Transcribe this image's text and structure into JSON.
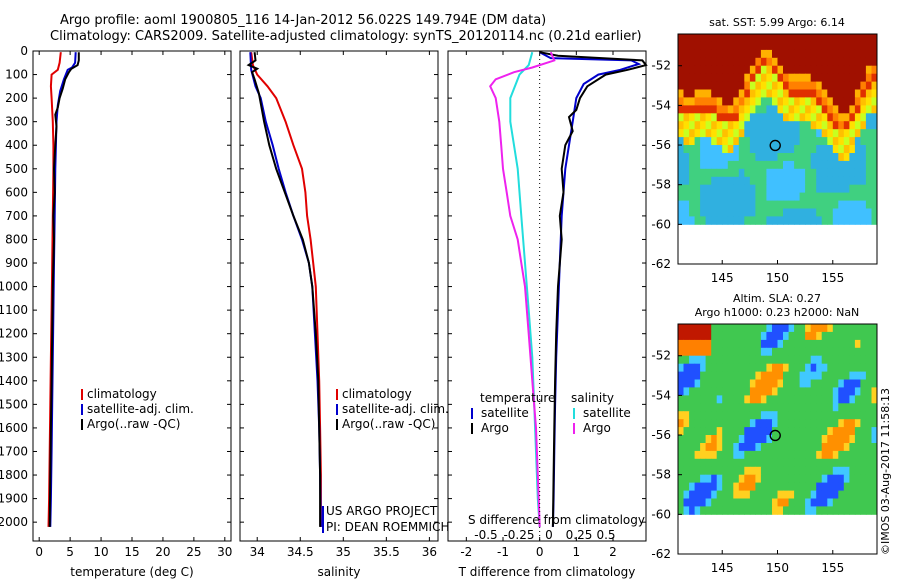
{
  "title_line1": "Argo profile: aoml 1900805_116 14-Jan-2012 56.022S 149.794E (DM data)",
  "title_line2": "Climatology: CARS2009. Satellite-adjusted climatology: synTS_20120114.nc (0.21d earlier)",
  "credit": "©IMOS 03-Aug-2017 11:58:13",
  "project_line1": "US ARGO PROJECT",
  "project_line2": "PI: DEAN ROEMMICH",
  "colors": {
    "climatology": "#e00000",
    "satellite": "#0000cc",
    "argo": "#000000",
    "s_sat": "#22dddd",
    "s_argo": "#ee22ee"
  },
  "chart_data": [
    {
      "type": "line",
      "panel": "temperature",
      "xlabel": "temperature (deg C)",
      "ylabel": "",
      "xlim": [
        -1,
        31
      ],
      "ylim": [
        2080,
        0
      ],
      "xticks": [
        0,
        5,
        10,
        15,
        20,
        25,
        30
      ],
      "yticks": [
        0,
        100,
        200,
        300,
        400,
        500,
        600,
        700,
        800,
        900,
        1000,
        1100,
        1200,
        1300,
        1400,
        1500,
        1600,
        1700,
        1800,
        1900,
        2000
      ],
      "legend": [
        "climatology",
        "satellite-adj. clim.",
        "Argo(..raw -QC)"
      ],
      "series": [
        {
          "name": "climatology",
          "color": "#e00000",
          "points": [
            [
              3.5,
              5
            ],
            [
              3.3,
              50
            ],
            [
              3.0,
              80
            ],
            [
              2.0,
              100
            ],
            [
              1.9,
              150
            ],
            [
              2.0,
              200
            ],
            [
              2.2,
              300
            ],
            [
              2.3,
              400
            ],
            [
              2.3,
              500
            ],
            [
              2.2,
              700
            ],
            [
              2.1,
              900
            ],
            [
              2.0,
              1100
            ],
            [
              1.9,
              1300
            ],
            [
              1.8,
              1500
            ],
            [
              1.7,
              1700
            ],
            [
              1.6,
              1900
            ],
            [
              1.5,
              2020
            ]
          ]
        },
        {
          "name": "satellite-adj. clim.",
          "color": "#0000cc",
          "points": [
            [
              5.9,
              5
            ],
            [
              5.8,
              50
            ],
            [
              5.3,
              70
            ],
            [
              4.6,
              80
            ],
            [
              4.0,
              120
            ],
            [
              3.4,
              170
            ],
            [
              3.0,
              230
            ],
            [
              2.8,
              300
            ],
            [
              2.7,
              400
            ],
            [
              2.6,
              500
            ],
            [
              2.5,
              700
            ],
            [
              2.4,
              900
            ],
            [
              2.3,
              1100
            ],
            [
              2.2,
              1300
            ],
            [
              2.1,
              1500
            ],
            [
              2.0,
              1700
            ],
            [
              1.9,
              1900
            ],
            [
              1.8,
              2020
            ]
          ]
        },
        {
          "name": "Argo(..raw -QC)",
          "color": "#000000",
          "points": [
            [
              6.4,
              5
            ],
            [
              6.4,
              40
            ],
            [
              6.2,
              60
            ],
            [
              5.2,
              75
            ],
            [
              4.8,
              90
            ],
            [
              4.2,
              120
            ],
            [
              3.8,
              160
            ],
            [
              3.3,
              200
            ],
            [
              3.0,
              240
            ],
            [
              2.6,
              270
            ],
            [
              2.8,
              320
            ],
            [
              2.6,
              400
            ],
            [
              2.4,
              500
            ],
            [
              2.5,
              600
            ],
            [
              2.3,
              700
            ],
            [
              2.4,
              800
            ],
            [
              2.2,
              1000
            ],
            [
              2.1,
              1200
            ],
            [
              2.0,
              1400
            ],
            [
              1.9,
              1600
            ],
            [
              1.8,
              1800
            ],
            [
              1.7,
              2020
            ]
          ]
        }
      ]
    },
    {
      "type": "line",
      "panel": "salinity",
      "xlabel": "salinity",
      "ylabel": "",
      "xlim": [
        33.8,
        36.1
      ],
      "ylim": [
        2080,
        0
      ],
      "xticks": [
        34,
        34.5,
        35,
        35.5,
        36
      ],
      "legend": [
        "climatology",
        "satellite-adj. clim.",
        "Argo(..raw -QC)"
      ],
      "series": [
        {
          "name": "climatology",
          "color": "#e00000",
          "points": [
            [
              33.93,
              5
            ],
            [
              33.95,
              60
            ],
            [
              34.0,
              100
            ],
            [
              34.12,
              150
            ],
            [
              34.22,
              200
            ],
            [
              34.33,
              300
            ],
            [
              34.42,
              400
            ],
            [
              34.52,
              500
            ],
            [
              34.56,
              600
            ],
            [
              34.58,
              700
            ],
            [
              34.62,
              800
            ],
            [
              34.65,
              900
            ],
            [
              34.68,
              1000
            ],
            [
              34.7,
              1200
            ],
            [
              34.72,
              1400
            ],
            [
              34.73,
              1600
            ],
            [
              34.74,
              1800
            ],
            [
              34.74,
              2020
            ]
          ]
        },
        {
          "name": "satellite-adj. clim.",
          "color": "#0000cc",
          "points": [
            [
              33.92,
              5
            ],
            [
              33.93,
              80
            ],
            [
              33.98,
              150
            ],
            [
              34.04,
              200
            ],
            [
              34.1,
              300
            ],
            [
              34.18,
              400
            ],
            [
              34.25,
              500
            ],
            [
              34.33,
              600
            ],
            [
              34.42,
              700
            ],
            [
              34.52,
              800
            ],
            [
              34.6,
              900
            ],
            [
              34.64,
              1000
            ],
            [
              34.67,
              1200
            ],
            [
              34.7,
              1400
            ],
            [
              34.72,
              1600
            ],
            [
              34.73,
              1800
            ],
            [
              34.74,
              2020
            ]
          ]
        },
        {
          "name": "Argo(..raw -QC)",
          "color": "#000000",
          "points": [
            [
              33.97,
              5
            ],
            [
              33.98,
              40
            ],
            [
              33.9,
              60
            ],
            [
              34.0,
              75
            ],
            [
              33.94,
              90
            ],
            [
              33.97,
              120
            ],
            [
              34.02,
              180
            ],
            [
              34.05,
              240
            ],
            [
              34.08,
              300
            ],
            [
              34.14,
              400
            ],
            [
              34.22,
              500
            ],
            [
              34.32,
              600
            ],
            [
              34.42,
              700
            ],
            [
              34.53,
              800
            ],
            [
              34.6,
              900
            ],
            [
              34.64,
              1000
            ],
            [
              34.68,
              1200
            ],
            [
              34.71,
              1400
            ],
            [
              34.72,
              1600
            ],
            [
              34.73,
              1800
            ],
            [
              34.73,
              2020
            ]
          ]
        }
      ]
    },
    {
      "type": "line",
      "panel": "difference",
      "xlabel": "T difference from climatology",
      "xlabel2": "S difference from climatology",
      "xlim": [
        -2.5,
        2.9
      ],
      "ylim": [
        2080,
        0
      ],
      "xticks": [
        -2,
        -1,
        0,
        1,
        2
      ],
      "xticks2": [
        -0.5,
        -0.25,
        0,
        0.25,
        0.5
      ],
      "legend_left_title": "temperature",
      "legend_right_title": "salinity",
      "legend": [
        "satellite",
        "Argo",
        "satellite",
        "Argo"
      ],
      "series": [
        {
          "name": "satellite",
          "color": "#0000cc",
          "points": [
            [
              0.0,
              5
            ],
            [
              0.3,
              30
            ],
            [
              2.5,
              40
            ],
            [
              2.7,
              55
            ],
            [
              2.2,
              80
            ],
            [
              1.6,
              100
            ],
            [
              1.2,
              140
            ],
            [
              1.0,
              200
            ],
            [
              0.9,
              300
            ],
            [
              0.8,
              400
            ],
            [
              0.7,
              500
            ],
            [
              0.6,
              700
            ],
            [
              0.55,
              900
            ],
            [
              0.5,
              1100
            ],
            [
              0.45,
              1300
            ],
            [
              0.42,
              1500
            ],
            [
              0.4,
              1700
            ],
            [
              0.38,
              1900
            ],
            [
              0.36,
              2020
            ]
          ]
        },
        {
          "name": "Argo",
          "color": "#000000",
          "points": [
            [
              0.0,
              5
            ],
            [
              0.5,
              20
            ],
            [
              2.8,
              40
            ],
            [
              2.9,
              60
            ],
            [
              2.4,
              80
            ],
            [
              1.8,
              100
            ],
            [
              1.3,
              150
            ],
            [
              1.1,
              200
            ],
            [
              1.0,
              250
            ],
            [
              0.8,
              280
            ],
            [
              0.9,
              340
            ],
            [
              0.7,
              400
            ],
            [
              0.6,
              500
            ],
            [
              0.65,
              600
            ],
            [
              0.55,
              700
            ],
            [
              0.6,
              800
            ],
            [
              0.5,
              1000
            ],
            [
              0.45,
              1200
            ],
            [
              0.42,
              1400
            ],
            [
              0.4,
              1600
            ],
            [
              0.38,
              1800
            ],
            [
              0.36,
              2020
            ]
          ]
        },
        {
          "name": "satellite",
          "color": "#22dddd",
          "points": [
            [
              -0.2,
              5
            ],
            [
              -0.3,
              60
            ],
            [
              -0.55,
              100
            ],
            [
              -0.8,
              200
            ],
            [
              -0.8,
              300
            ],
            [
              -0.7,
              400
            ],
            [
              -0.6,
              500
            ],
            [
              -0.5,
              700
            ],
            [
              -0.4,
              900
            ],
            [
              -0.3,
              1100
            ],
            [
              -0.2,
              1300
            ],
            [
              -0.15,
              1500
            ],
            [
              -0.1,
              1700
            ],
            [
              -0.05,
              1900
            ],
            [
              0.0,
              2020
            ]
          ]
        },
        {
          "name": "Argo",
          "color": "#ee22ee",
          "points": [
            [
              0.3,
              5
            ],
            [
              0.4,
              40
            ],
            [
              -0.2,
              70
            ],
            [
              -0.7,
              90
            ],
            [
              -1.2,
              120
            ],
            [
              -1.35,
              150
            ],
            [
              -1.2,
              200
            ],
            [
              -1.1,
              300
            ],
            [
              -1.05,
              400
            ],
            [
              -1.0,
              500
            ],
            [
              -0.9,
              600
            ],
            [
              -0.8,
              700
            ],
            [
              -0.6,
              800
            ],
            [
              -0.5,
              900
            ],
            [
              -0.4,
              1000
            ],
            [
              -0.3,
              1200
            ],
            [
              -0.2,
              1400
            ],
            [
              -0.1,
              1600
            ],
            [
              -0.05,
              1800
            ],
            [
              0.0,
              2020
            ]
          ]
        }
      ]
    },
    {
      "type": "heatmap",
      "panel": "sst",
      "title": "sat. SST: 5.99 Argo: 6.14",
      "xlim": [
        141,
        159
      ],
      "ylim": [
        -62,
        -50.4
      ],
      "xticks": [
        145,
        150,
        155
      ],
      "yticks": [
        -52,
        -54,
        -56,
        -58,
        -60,
        -62
      ],
      "marker": [
        149.794,
        -56.022
      ]
    },
    {
      "type": "heatmap",
      "panel": "sla",
      "title": "Altim. SLA: 0.27",
      "subtitle": "Argo h1000: 0.23 h2000: NaN",
      "xlim": [
        141,
        159
      ],
      "ylim": [
        -62,
        -50.4
      ],
      "xticks": [
        145,
        150,
        155
      ],
      "yticks": [
        -52,
        -54,
        -56,
        -58,
        -60,
        -62
      ],
      "marker": [
        149.794,
        -56.022
      ]
    }
  ]
}
